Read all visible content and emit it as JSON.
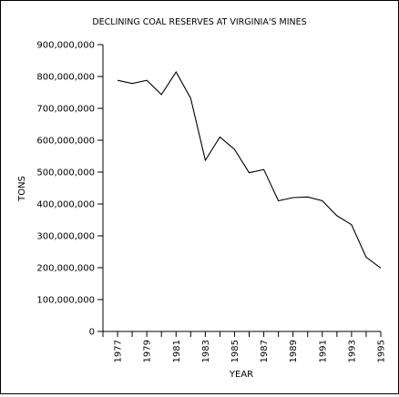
{
  "chart_data": {
    "type": "line",
    "title": "DECLINING COAL RESERVES AT VIRGINIA'S MINES",
    "xlabel": "YEAR",
    "ylabel": "TONS",
    "ylim": [
      0,
      900000000
    ],
    "yticks": [
      0,
      100000000,
      200000000,
      300000000,
      400000000,
      500000000,
      600000000,
      700000000,
      800000000,
      900000000
    ],
    "ytick_labels": [
      "0",
      "100,000,000",
      "200,000,000",
      "300,000,000",
      "400,000,000",
      "500,000,000",
      "600,000,000",
      "700,000,000",
      "800,000,000",
      "900,000,000"
    ],
    "xlim": [
      1976,
      1995
    ],
    "xticks": [
      1977,
      1979,
      1981,
      1983,
      1985,
      1987,
      1989,
      1991,
      1993,
      1995
    ],
    "xtick_labels": [
      "1977",
      "1979",
      "1981",
      "1983",
      "1985",
      "1987",
      "1989",
      "1991",
      "1993",
      "1995"
    ],
    "grid": false,
    "legend": "none",
    "series": [
      {
        "x": [
          1977,
          1978,
          1979,
          1980,
          1981,
          1982,
          1983,
          1984,
          1985,
          1986,
          1987,
          1988,
          1989,
          1990,
          1991,
          1992,
          1993,
          1994,
          1995
        ],
        "values": [
          788000000,
          778000000,
          788000000,
          743000000,
          814000000,
          732000000,
          537000000,
          610000000,
          571000000,
          498000000,
          508000000,
          410000000,
          420000000,
          422000000,
          410000000,
          363000000,
          335000000,
          233000000,
          199000000
        ]
      }
    ]
  }
}
